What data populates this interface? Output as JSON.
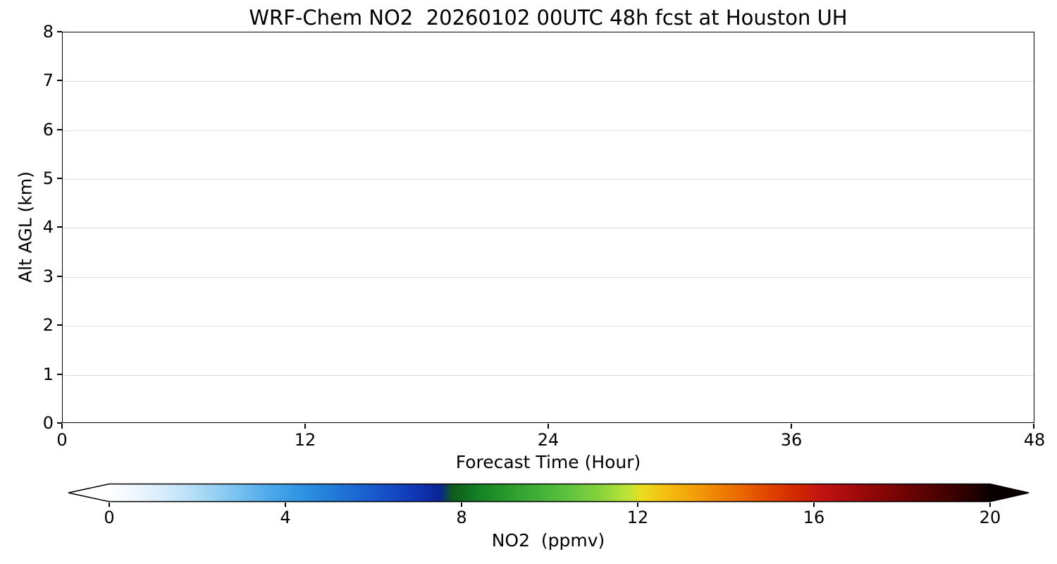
{
  "title": "WRF-Chem NO2  20260102 00UTC 48h fcst at Houston UH",
  "chart_data": {
    "type": "heatmap",
    "title": "WRF-Chem NO2  20260102 00UTC 48h fcst at Houston UH",
    "xlabel": "Forecast Time (Hour)",
    "ylabel": "Alt AGL (km)",
    "xlim": [
      0,
      48
    ],
    "ylim": [
      0,
      8
    ],
    "x_ticks": [
      "0",
      "12",
      "24",
      "36",
      "48"
    ],
    "y_ticks": [
      "0",
      "1",
      "2",
      "3",
      "4",
      "5",
      "6",
      "7",
      "8"
    ],
    "grid": "horizontal gridlines at each km",
    "values": [],
    "colorbar": {
      "label": "NO2  (ppmv)",
      "ticks": [
        "0",
        "4",
        "8",
        "12",
        "16",
        "20"
      ],
      "range": [
        0,
        20
      ],
      "extend": "both",
      "under_color": "#ffffff",
      "over_color": "#0a0000",
      "gradient": [
        {
          "v": 0,
          "c": "#ffffff"
        },
        {
          "v": 0.7,
          "c": "#eaf5fd"
        },
        {
          "v": 1.4,
          "c": "#cfe9fa"
        },
        {
          "v": 2.1,
          "c": "#a9d9f6"
        },
        {
          "v": 2.8,
          "c": "#7fc5f1"
        },
        {
          "v": 3.5,
          "c": "#55aeec"
        },
        {
          "v": 4.2,
          "c": "#3598e5"
        },
        {
          "v": 4.9,
          "c": "#2481da"
        },
        {
          "v": 5.6,
          "c": "#1c68d2"
        },
        {
          "v": 6.3,
          "c": "#164ec6"
        },
        {
          "v": 7.0,
          "c": "#1034b2"
        },
        {
          "v": 7.5,
          "c": "#0b2496"
        },
        {
          "v": 7.8,
          "c": "#0e5c1c"
        },
        {
          "v": 8.4,
          "c": "#158224"
        },
        {
          "v": 9.1,
          "c": "#2b9c2e"
        },
        {
          "v": 9.8,
          "c": "#44b238"
        },
        {
          "v": 10.5,
          "c": "#63c43e"
        },
        {
          "v": 11.2,
          "c": "#8cd43c"
        },
        {
          "v": 11.8,
          "c": "#bfe436"
        },
        {
          "v": 12.1,
          "c": "#ecdc1e"
        },
        {
          "v": 12.6,
          "c": "#f4c112"
        },
        {
          "v": 13.2,
          "c": "#f3a30b"
        },
        {
          "v": 13.8,
          "c": "#ef8305"
        },
        {
          "v": 14.4,
          "c": "#e96301"
        },
        {
          "v": 15.0,
          "c": "#df4300"
        },
        {
          "v": 15.6,
          "c": "#d22900"
        },
        {
          "v": 16.2,
          "c": "#c01313"
        },
        {
          "v": 16.9,
          "c": "#a30b0b"
        },
        {
          "v": 17.6,
          "c": "#850606"
        },
        {
          "v": 18.3,
          "c": "#640303"
        },
        {
          "v": 19.0,
          "c": "#440101"
        },
        {
          "v": 19.6,
          "c": "#250000"
        },
        {
          "v": 20,
          "c": "#0a0000"
        }
      ]
    }
  }
}
